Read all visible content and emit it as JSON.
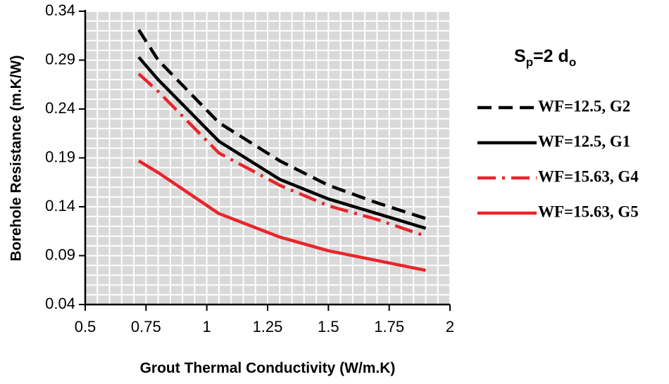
{
  "chart_data": {
    "type": "line",
    "title": "",
    "xlabel": "Grout Thermal Conductivity (W/m.K)",
    "ylabel": "Borehole Resistance (m.K/W)",
    "xlim": [
      0.5,
      2
    ],
    "ylim": [
      0.04,
      0.34
    ],
    "x_ticks": [
      0.5,
      0.75,
      1,
      1.25,
      1.5,
      1.75,
      2
    ],
    "x_tick_labels": [
      "0.5",
      "0.75",
      "1",
      "1.25",
      "1.5",
      "1.75",
      "2"
    ],
    "y_ticks": [
      0.04,
      0.09,
      0.14,
      0.19,
      0.24,
      0.29,
      0.34
    ],
    "y_tick_labels": [
      "0.04",
      "0.09",
      "0.14",
      "0.19",
      "0.24",
      "0.29",
      "0.34"
    ],
    "grid": true,
    "annotation": {
      "main": "S",
      "sub1": "p",
      "mid": "=2 d",
      "sub2": "o"
    },
    "legend_position": "right",
    "series": [
      {
        "name": "WF=12.5, G2",
        "color": "#000000",
        "style": "dashed",
        "x": [
          0.72,
          0.8,
          1.05,
          1.3,
          1.5,
          1.7,
          1.9
        ],
        "y": [
          0.321,
          0.29,
          0.226,
          0.187,
          0.162,
          0.144,
          0.128
        ]
      },
      {
        "name": "WF=12.5, G1",
        "color": "#000000",
        "style": "solid",
        "x": [
          0.72,
          0.8,
          1.05,
          1.3,
          1.5,
          1.7,
          1.9
        ],
        "y": [
          0.293,
          0.27,
          0.207,
          0.168,
          0.148,
          0.133,
          0.118
        ]
      },
      {
        "name": "WF=15.63, G4",
        "color": "#e8262b",
        "style": "dashdot",
        "x": [
          0.72,
          0.8,
          1.05,
          1.3,
          1.5,
          1.7,
          1.9
        ],
        "y": [
          0.276,
          0.258,
          0.195,
          0.162,
          0.141,
          0.127,
          0.11
        ]
      },
      {
        "name": "WF=15.63, G5",
        "color": "#e8262b",
        "style": "solid",
        "x": [
          0.72,
          0.8,
          1.05,
          1.3,
          1.5,
          1.7,
          1.9
        ],
        "y": [
          0.187,
          0.175,
          0.133,
          0.109,
          0.095,
          0.085,
          0.075
        ]
      }
    ]
  }
}
